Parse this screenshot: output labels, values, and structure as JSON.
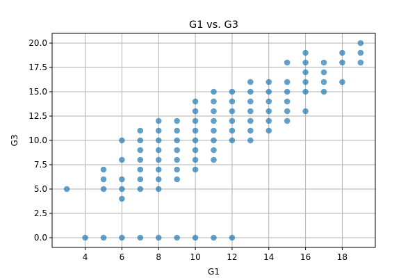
{
  "chart_data": {
    "type": "scatter",
    "title": "G1 vs. G3",
    "xlabel": "G1",
    "ylabel": "G3",
    "xlim": [
      2.2,
      19.8
    ],
    "ylim": [
      -1.0,
      21.0
    ],
    "xticks": [
      4,
      6,
      8,
      10,
      12,
      14,
      16,
      18
    ],
    "xtick_labels": [
      "4",
      "6",
      "8",
      "10",
      "12",
      "14",
      "16",
      "18"
    ],
    "yticks": [
      0,
      2.5,
      5,
      7.5,
      10,
      12.5,
      15,
      17.5,
      20
    ],
    "ytick_labels": [
      "0.0",
      "2.5",
      "5.0",
      "7.5",
      "10.0",
      "12.5",
      "15.0",
      "17.5",
      "20.0"
    ],
    "grid": true,
    "point_color": "#1f77b4",
    "point_alpha": 0.7,
    "points": [
      [
        3,
        5
      ],
      [
        4,
        0
      ],
      [
        5,
        0
      ],
      [
        5,
        5
      ],
      [
        5,
        6
      ],
      [
        5,
        7
      ],
      [
        6,
        0
      ],
      [
        6,
        4
      ],
      [
        6,
        5
      ],
      [
        6,
        6
      ],
      [
        6,
        8
      ],
      [
        6,
        10
      ],
      [
        7,
        0
      ],
      [
        7,
        5
      ],
      [
        7,
        6
      ],
      [
        7,
        7
      ],
      [
        7,
        8
      ],
      [
        7,
        9
      ],
      [
        7,
        10
      ],
      [
        7,
        11
      ],
      [
        8,
        0
      ],
      [
        8,
        5
      ],
      [
        8,
        6
      ],
      [
        8,
        7
      ],
      [
        8,
        8
      ],
      [
        8,
        9
      ],
      [
        8,
        10
      ],
      [
        8,
        11
      ],
      [
        8,
        12
      ],
      [
        9,
        0
      ],
      [
        9,
        6
      ],
      [
        9,
        7
      ],
      [
        9,
        8
      ],
      [
        9,
        9
      ],
      [
        9,
        10
      ],
      [
        9,
        11
      ],
      [
        9,
        12
      ],
      [
        10,
        0
      ],
      [
        10,
        7
      ],
      [
        10,
        8
      ],
      [
        10,
        9
      ],
      [
        10,
        10
      ],
      [
        10,
        11
      ],
      [
        10,
        12
      ],
      [
        10,
        13
      ],
      [
        10,
        14
      ],
      [
        11,
        0
      ],
      [
        11,
        8
      ],
      [
        11,
        9
      ],
      [
        11,
        10
      ],
      [
        11,
        11
      ],
      [
        11,
        12
      ],
      [
        11,
        13
      ],
      [
        11,
        14
      ],
      [
        11,
        15
      ],
      [
        12,
        0
      ],
      [
        12,
        10
      ],
      [
        12,
        11
      ],
      [
        12,
        12
      ],
      [
        12,
        13
      ],
      [
        12,
        14
      ],
      [
        12,
        15
      ],
      [
        13,
        10
      ],
      [
        13,
        11
      ],
      [
        13,
        12
      ],
      [
        13,
        13
      ],
      [
        13,
        14
      ],
      [
        13,
        15
      ],
      [
        13,
        16
      ],
      [
        14,
        11
      ],
      [
        14,
        12
      ],
      [
        14,
        13
      ],
      [
        14,
        14
      ],
      [
        14,
        15
      ],
      [
        14,
        16
      ],
      [
        15,
        12
      ],
      [
        15,
        13
      ],
      [
        15,
        14
      ],
      [
        15,
        15
      ],
      [
        15,
        16
      ],
      [
        15,
        18
      ],
      [
        16,
        13
      ],
      [
        16,
        15
      ],
      [
        16,
        16
      ],
      [
        16,
        17
      ],
      [
        16,
        18
      ],
      [
        16,
        19
      ],
      [
        17,
        15
      ],
      [
        17,
        16
      ],
      [
        17,
        17
      ],
      [
        17,
        18
      ],
      [
        18,
        16
      ],
      [
        18,
        18
      ],
      [
        18,
        19
      ],
      [
        19,
        18
      ],
      [
        19,
        19
      ],
      [
        19,
        20
      ]
    ]
  }
}
